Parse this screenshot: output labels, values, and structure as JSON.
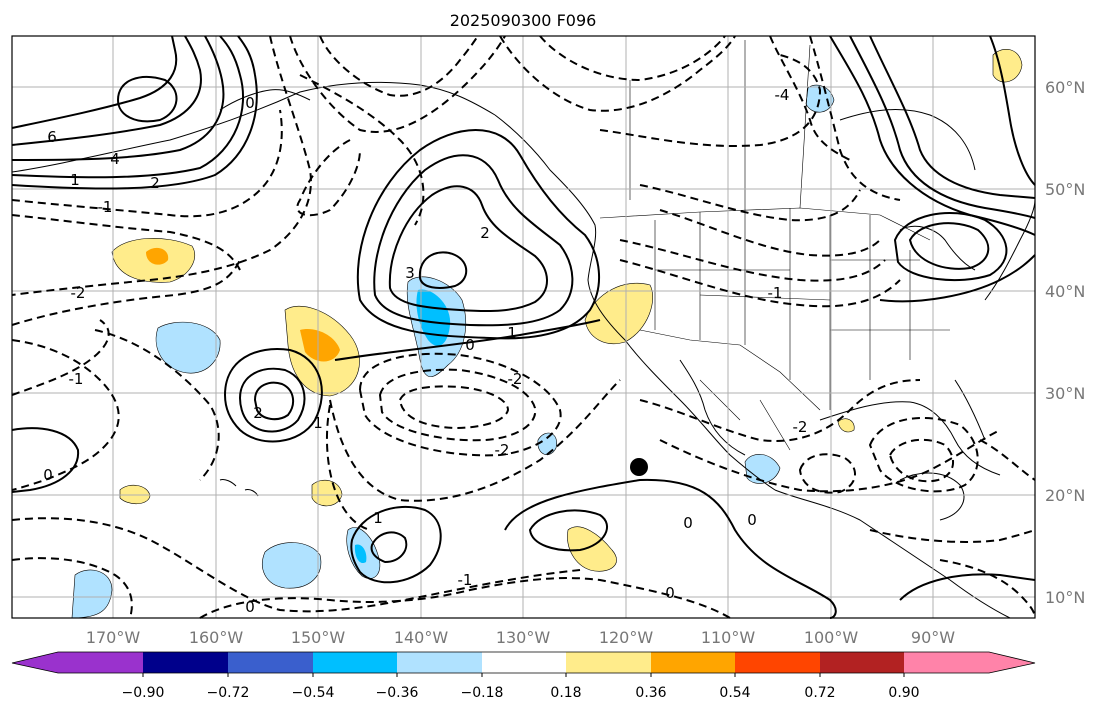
{
  "title": "2025090300 F096",
  "map": {
    "lat_labels": [
      "60°N",
      "50°N",
      "40°N",
      "30°N",
      "20°N",
      "10°N"
    ],
    "lon_labels": [
      "170°W",
      "160°W",
      "150°W",
      "140°W",
      "130°W",
      "120°W",
      "110°W",
      "100°W",
      "90°W"
    ],
    "contour_labels": [
      "6",
      "4",
      "2",
      "1",
      "-1",
      "-2",
      "0",
      "3",
      "2",
      "1",
      "0",
      "-2",
      "-1",
      "0",
      "1",
      "2",
      "-2",
      "0",
      "0",
      "-1",
      "1",
      "-1",
      "0",
      "0",
      "-4",
      "-2"
    ],
    "marker": "black dot"
  },
  "colorbar": {
    "colors": [
      "#9a32cd",
      "#00008b",
      "#3a5fcd",
      "#00bfff",
      "#b0e2ff",
      "#ffffff",
      "#ffec8b",
      "#ffa500",
      "#ff4500",
      "#b22222",
      "#ff83a9"
    ],
    "ticks": [
      "−0.90",
      "−0.72",
      "−0.54",
      "−0.36",
      "−0.18",
      "0.18",
      "0.36",
      "0.54",
      "0.72",
      "0.90"
    ]
  }
}
